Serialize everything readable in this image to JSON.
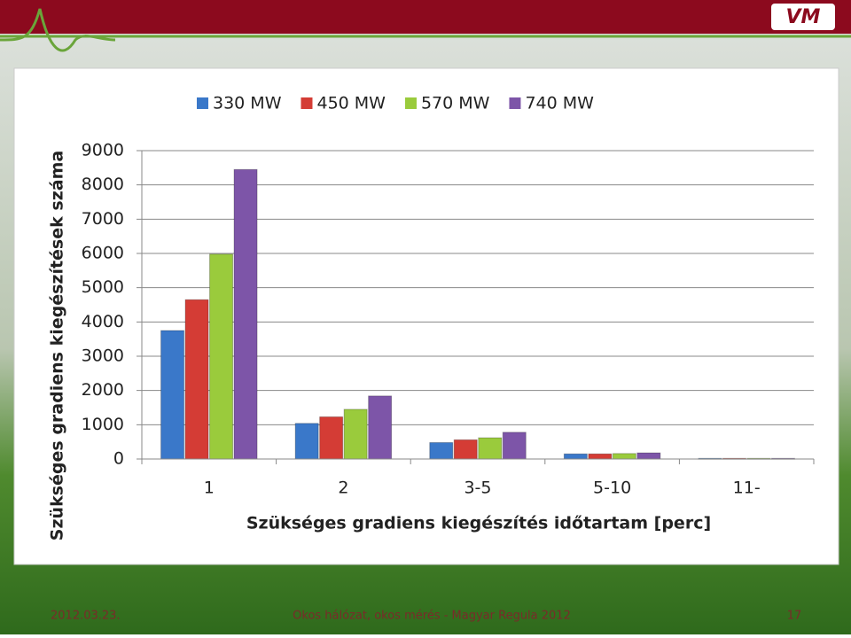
{
  "chart_data": {
    "type": "bar",
    "x_label": "Szükséges gradiens kiegészítés időtartam  [perc]",
    "y_label": "Szükséges gradiens kiegészítések száma",
    "categories": [
      "1",
      "2",
      "3-5",
      "5-10",
      "11-"
    ],
    "series": [
      {
        "name": "330 MW",
        "color": "#3a78c9",
        "values": [
          3750,
          1040,
          480,
          150,
          20
        ]
      },
      {
        "name": "450 MW",
        "color": "#d43c35",
        "values": [
          4650,
          1230,
          560,
          150,
          20
        ]
      },
      {
        "name": "570 MW",
        "color": "#9acb3c",
        "values": [
          5980,
          1450,
          620,
          160,
          20
        ]
      },
      {
        "name": "740 MW",
        "color": "#7d55a8",
        "values": [
          8450,
          1840,
          780,
          180,
          20
        ]
      }
    ],
    "ylim": [
      0,
      9000
    ],
    "yticks": [
      0,
      1000,
      2000,
      3000,
      4000,
      5000,
      6000,
      7000,
      8000,
      9000
    ],
    "grid": true,
    "legend": "top"
  },
  "logo": "VM",
  "footer": {
    "date": "2012.03.23.",
    "title": "Okos hálózat, okos mérés - Magyar Regula 2012",
    "page": "17"
  }
}
